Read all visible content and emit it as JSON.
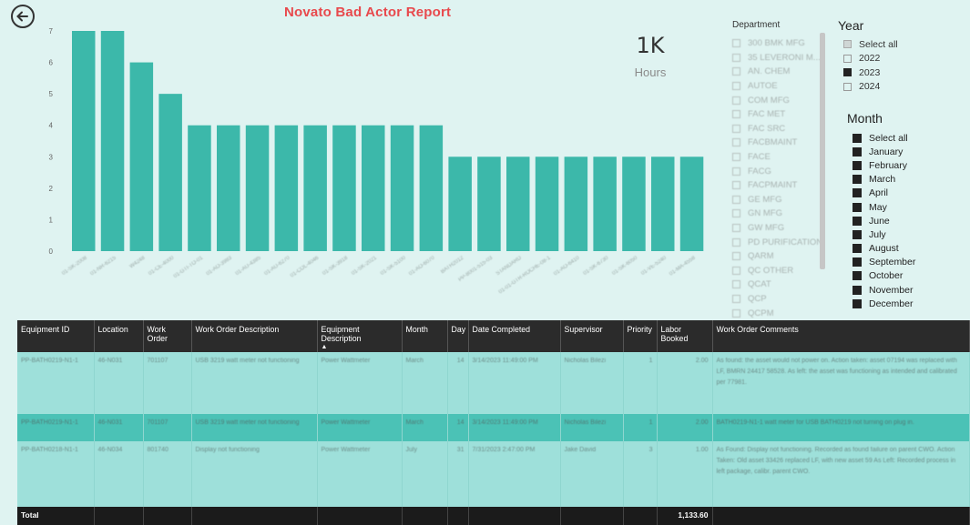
{
  "report": {
    "title": "Novato Bad Actor Report"
  },
  "kpi": {
    "value": "1K",
    "label": "Hours"
  },
  "chart_data": {
    "type": "bar",
    "categories": [
      "01-SK-2008",
      "01-NR-6215",
      "W4248",
      "01-CE-4000",
      "01-GTI-TO-01",
      "01-AO-3983",
      "01-AU-4385",
      "01-AU-6270",
      "01-COL-4046",
      "01-SK-3918",
      "01-SK-2021",
      "01-SK-5100",
      "01-AO-6070",
      "BATH2012",
      "PP-8001-515-03",
      "STANDARD",
      "01-01-GTR-ROCHE-08-1",
      "01-AO-6410",
      "01-SK-6730",
      "01-SK-6050",
      "01-VE-5240",
      "01-MA-4558"
    ],
    "values": [
      7,
      7,
      6,
      5,
      4,
      4,
      4,
      4,
      4,
      4,
      4,
      4,
      4,
      3,
      3,
      3,
      3,
      3,
      3,
      3,
      3,
      3
    ],
    "ylim": [
      0,
      7
    ],
    "yticks": [
      "0",
      "1",
      "2",
      "3",
      "4",
      "5",
      "6",
      "7"
    ],
    "color": "#3cb8aa",
    "xlabel": "",
    "ylabel": ""
  },
  "department": {
    "title": "Department",
    "items": [
      "300 BMK MFG",
      "35 LEVERONI M...",
      "AN. CHEM",
      "AUTOE",
      "COM MFG",
      "FAC MET",
      "FAC SRC",
      "FACBMAINT",
      "FACE",
      "FACG",
      "FACPMAINT",
      "GE MFG",
      "GN MFG",
      "GW MFG",
      "PD PURIFICATION",
      "QARM",
      "QC OTHER",
      "QCAT",
      "QCP",
      "QCPM"
    ]
  },
  "year": {
    "title": "Year",
    "items": [
      {
        "label": "Select all",
        "state": "partial"
      },
      {
        "label": "2022",
        "state": "off"
      },
      {
        "label": "2023",
        "state": "on"
      },
      {
        "label": "2024",
        "state": "off"
      }
    ]
  },
  "month": {
    "title": "Month",
    "items": [
      "Select all",
      "January",
      "February",
      "March",
      "April",
      "May",
      "June",
      "July",
      "August",
      "September",
      "October",
      "November",
      "December"
    ]
  },
  "table": {
    "headers": [
      "Equipment ID",
      "Location",
      "Work Order",
      "Work Order Description",
      "Equipment Description",
      "Month",
      "Day",
      "Date Completed",
      "Supervisor",
      "Priority",
      "Labor Booked",
      "Work Order Comments"
    ],
    "sort_arrow": "▲",
    "rows": [
      [
        "PP-BATH0219-N1-1",
        "46-N031",
        "701107",
        "USB 3219 watt meter not functioning",
        "Power Wattmeter",
        "March",
        "14",
        "3/14/2023 11:49:00 PM",
        "Nicholas Bilezi",
        "1",
        "2.00",
        "As found: the asset would not power on. Action taken: asset 07194 was replaced with LF, BMRN 24417 58528. As left: the asset was functioning as intended and calibrated per 77981."
      ],
      [
        "PP-BATH0219-N1-1",
        "46-N031",
        "701107",
        "USB 3219 watt meter not functioning",
        "Power Wattmeter",
        "March",
        "14",
        "3/14/2023 11:49:00 PM",
        "Nicholas Bilezi",
        "1",
        "2.00",
        "BATH0219-N1-1 watt meter for USB BATH0219 not turning on plug in."
      ],
      [
        "PP-BATH0218-N1-1",
        "46-N034",
        "801740",
        "Display not functioning",
        "Power Wattmeter",
        "July",
        "31",
        "7/31/2023 2:47:00 PM",
        "Jake David",
        "3",
        "1.00",
        "As Found: Display not functioning. Recorded as found failure on parent CWO. Action Taken: Old asset 33426 replaced LF, with new asset 59 As Left: Recorded process in left package, calibr. parent CWO."
      ]
    ],
    "total_label": "Total",
    "total_value": "1,133.60"
  }
}
